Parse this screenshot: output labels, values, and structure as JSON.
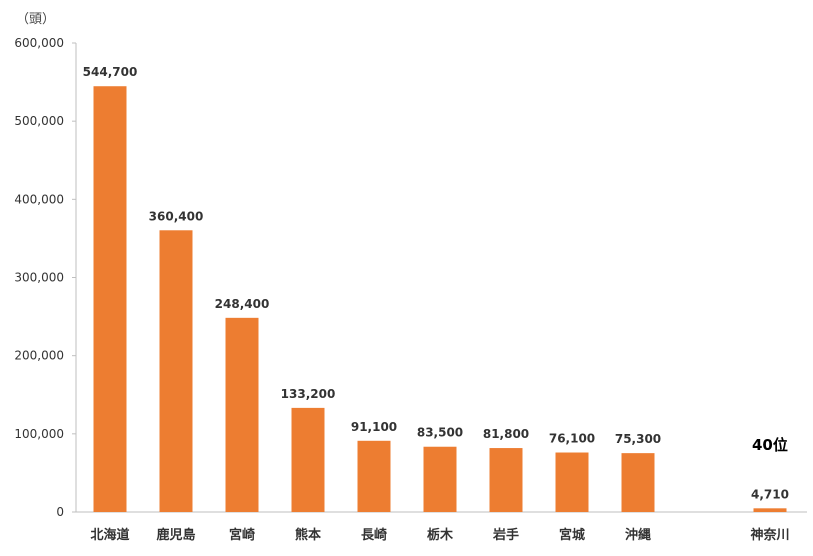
{
  "chart_data": {
    "type": "bar",
    "unit_label": "（頭）",
    "categories": [
      "北海道",
      "鹿児島",
      "宮崎",
      "熊本",
      "長崎",
      "栃木",
      "岩手",
      "宮城",
      "沖縄",
      "",
      "神奈川"
    ],
    "values": [
      544700,
      360400,
      248400,
      133200,
      91100,
      83500,
      81800,
      76100,
      75300,
      null,
      4710
    ],
    "data_labels": [
      "544,700",
      "360,400",
      "248,400",
      "133,200",
      "91,100",
      "83,500",
      "81,800",
      "76,100",
      "75,300",
      "",
      "4,710"
    ],
    "y_ticks": [
      "0",
      "100,000",
      "200,000",
      "300,000",
      "400,000",
      "500,000",
      "600,000"
    ],
    "ylim": [
      0,
      600000
    ],
    "annotation": "40位",
    "bar_color": "#ED7D31",
    "grid": false
  }
}
